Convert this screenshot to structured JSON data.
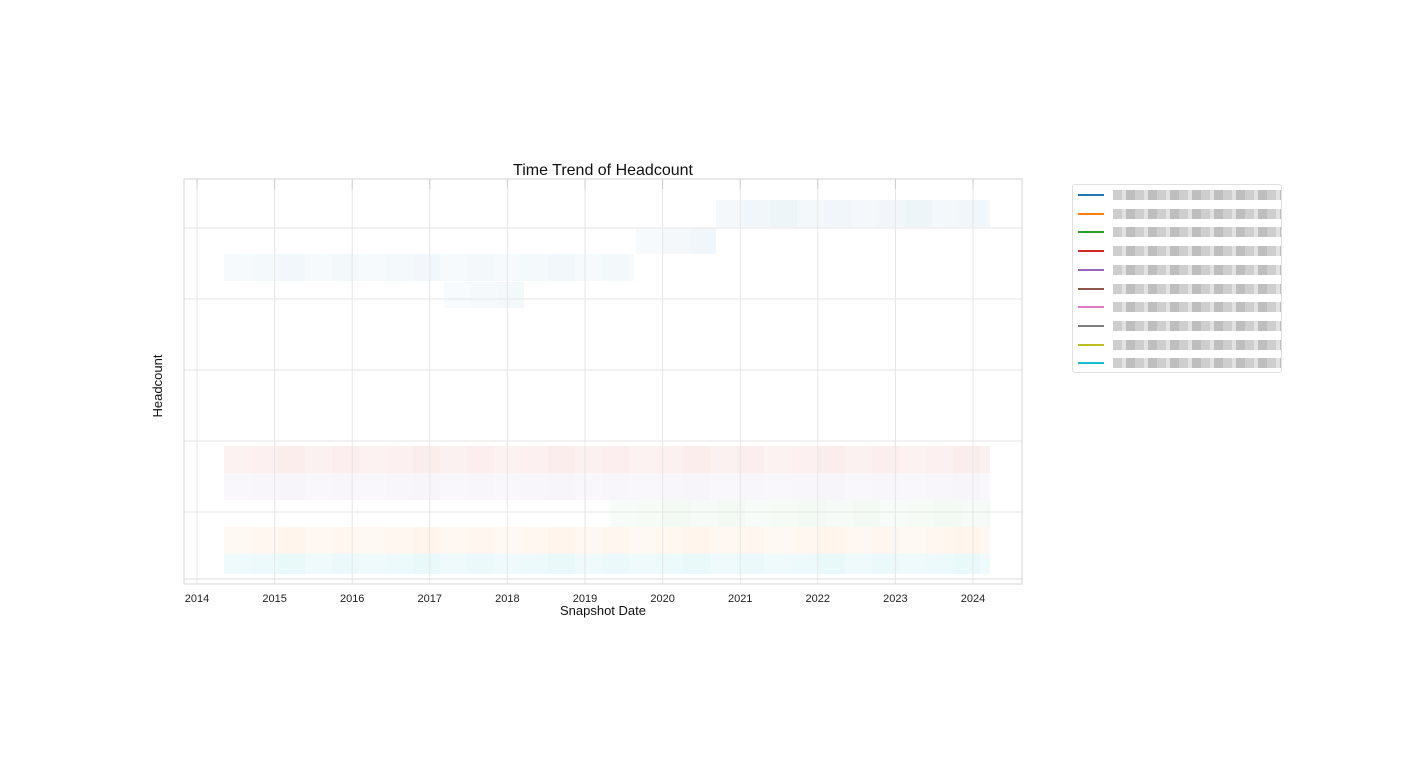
{
  "chart_data": {
    "type": "heatmap",
    "title": "Time Trend of Headcount",
    "xlabel": "Snapshot Date",
    "ylabel": "Headcount",
    "x_ticks": [
      "2014",
      "2015",
      "2016",
      "2017",
      "2018",
      "2019",
      "2020",
      "2021",
      "2022",
      "2023",
      "2024"
    ],
    "grid": true,
    "legend_position": "outside-right",
    "series": [
      {
        "color": "#1f77b4"
      },
      {
        "color": "#ff7f0e"
      },
      {
        "color": "#2ca02c"
      },
      {
        "color": "#d62728"
      },
      {
        "color": "#9467bd"
      },
      {
        "color": "#8c564b"
      },
      {
        "color": "#e377c2"
      },
      {
        "color": "#7f7f7f"
      },
      {
        "color": "#bcbd22"
      },
      {
        "color": "#17becf"
      }
    ]
  }
}
